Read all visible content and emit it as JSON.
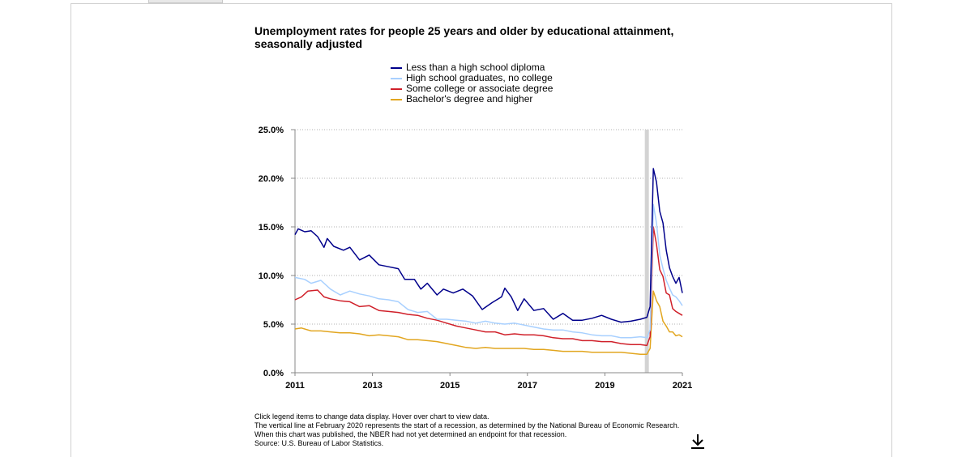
{
  "chart_data": {
    "type": "line",
    "title": "Unemployment rates for people 25 years and older by educational attainment, seasonally adjusted",
    "xlabel": "",
    "ylabel": "",
    "x_range": [
      "2011-01",
      "2021-01"
    ],
    "ylim": [
      0,
      25
    ],
    "y_ticks": [
      "0.0%",
      "5.0%",
      "10.0%",
      "15.0%",
      "20.0%",
      "25.0%"
    ],
    "x_ticks": [
      "2011",
      "2013",
      "2015",
      "2017",
      "2019",
      "2021"
    ],
    "grid": "horizontal dotted",
    "recession_start": "2020-02",
    "series": [
      {
        "name": "Less than a high school diploma",
        "color": "#00008b",
        "points": [
          [
            "2011-01",
            14.2
          ],
          [
            "2011-02",
            14.8
          ],
          [
            "2011-04",
            14.5
          ],
          [
            "2011-06",
            14.6
          ],
          [
            "2011-08",
            14.0
          ],
          [
            "2011-10",
            12.9
          ],
          [
            "2011-11",
            13.8
          ],
          [
            "2012-01",
            13.0
          ],
          [
            "2012-04",
            12.6
          ],
          [
            "2012-06",
            12.9
          ],
          [
            "2012-09",
            11.6
          ],
          [
            "2012-12",
            12.1
          ],
          [
            "2013-03",
            11.1
          ],
          [
            "2013-06",
            10.9
          ],
          [
            "2013-09",
            10.7
          ],
          [
            "2013-11",
            9.6
          ],
          [
            "2014-02",
            9.6
          ],
          [
            "2014-04",
            8.6
          ],
          [
            "2014-06",
            9.2
          ],
          [
            "2014-09",
            8.0
          ],
          [
            "2014-11",
            8.6
          ],
          [
            "2015-02",
            8.2
          ],
          [
            "2015-05",
            8.6
          ],
          [
            "2015-08",
            7.9
          ],
          [
            "2015-11",
            6.5
          ],
          [
            "2016-02",
            7.2
          ],
          [
            "2016-05",
            7.8
          ],
          [
            "2016-06",
            8.7
          ],
          [
            "2016-08",
            7.8
          ],
          [
            "2016-10",
            6.4
          ],
          [
            "2016-12",
            7.6
          ],
          [
            "2017-03",
            6.4
          ],
          [
            "2017-06",
            6.6
          ],
          [
            "2017-09",
            5.5
          ],
          [
            "2017-12",
            6.1
          ],
          [
            "2018-03",
            5.4
          ],
          [
            "2018-06",
            5.4
          ],
          [
            "2018-09",
            5.6
          ],
          [
            "2018-12",
            5.9
          ],
          [
            "2019-03",
            5.5
          ],
          [
            "2019-06",
            5.2
          ],
          [
            "2019-09",
            5.3
          ],
          [
            "2019-12",
            5.5
          ],
          [
            "2020-02",
            5.7
          ],
          [
            "2020-03",
            6.8
          ],
          [
            "2020-04",
            21.0
          ],
          [
            "2020-05",
            19.6
          ],
          [
            "2020-06",
            16.6
          ],
          [
            "2020-07",
            15.4
          ],
          [
            "2020-08",
            12.6
          ],
          [
            "2020-09",
            10.8
          ],
          [
            "2020-10",
            9.9
          ],
          [
            "2020-11",
            9.2
          ],
          [
            "2020-12",
            9.8
          ],
          [
            "2021-01",
            8.2
          ]
        ]
      },
      {
        "name": "High school graduates, no college",
        "color": "#a8d0ff",
        "points": [
          [
            "2011-01",
            9.8
          ],
          [
            "2011-04",
            9.6
          ],
          [
            "2011-06",
            9.2
          ],
          [
            "2011-09",
            9.5
          ],
          [
            "2011-12",
            8.6
          ],
          [
            "2012-03",
            8.0
          ],
          [
            "2012-06",
            8.4
          ],
          [
            "2012-09",
            8.1
          ],
          [
            "2012-12",
            7.9
          ],
          [
            "2013-03",
            7.6
          ],
          [
            "2013-06",
            7.5
          ],
          [
            "2013-09",
            7.3
          ],
          [
            "2013-12",
            6.5
          ],
          [
            "2014-03",
            6.2
          ],
          [
            "2014-06",
            6.3
          ],
          [
            "2014-09",
            5.5
          ],
          [
            "2014-12",
            5.5
          ],
          [
            "2015-03",
            5.4
          ],
          [
            "2015-06",
            5.3
          ],
          [
            "2015-09",
            5.1
          ],
          [
            "2015-12",
            5.3
          ],
          [
            "2016-03",
            5.1
          ],
          [
            "2016-06",
            5.0
          ],
          [
            "2016-09",
            5.1
          ],
          [
            "2016-12",
            4.9
          ],
          [
            "2017-03",
            4.7
          ],
          [
            "2017-06",
            4.5
          ],
          [
            "2017-09",
            4.4
          ],
          [
            "2017-12",
            4.4
          ],
          [
            "2018-03",
            4.2
          ],
          [
            "2018-06",
            4.1
          ],
          [
            "2018-09",
            3.9
          ],
          [
            "2018-12",
            3.8
          ],
          [
            "2019-03",
            3.8
          ],
          [
            "2019-06",
            3.6
          ],
          [
            "2019-09",
            3.6
          ],
          [
            "2019-12",
            3.7
          ],
          [
            "2020-02",
            3.6
          ],
          [
            "2020-03",
            4.4
          ],
          [
            "2020-04",
            17.3
          ],
          [
            "2020-05",
            15.4
          ],
          [
            "2020-06",
            12.1
          ],
          [
            "2020-07",
            10.7
          ],
          [
            "2020-08",
            9.5
          ],
          [
            "2020-09",
            8.7
          ],
          [
            "2020-10",
            8.0
          ],
          [
            "2020-11",
            7.8
          ],
          [
            "2020-12",
            7.4
          ],
          [
            "2021-01",
            6.9
          ]
        ]
      },
      {
        "name": "Some college or associate degree",
        "color": "#d0202a",
        "points": [
          [
            "2011-01",
            7.5
          ],
          [
            "2011-03",
            7.8
          ],
          [
            "2011-05",
            8.4
          ],
          [
            "2011-08",
            8.5
          ],
          [
            "2011-10",
            7.8
          ],
          [
            "2011-12",
            7.6
          ],
          [
            "2012-03",
            7.4
          ],
          [
            "2012-06",
            7.3
          ],
          [
            "2012-09",
            6.8
          ],
          [
            "2012-12",
            6.9
          ],
          [
            "2013-03",
            6.4
          ],
          [
            "2013-06",
            6.3
          ],
          [
            "2013-09",
            6.2
          ],
          [
            "2013-12",
            6.0
          ],
          [
            "2014-03",
            5.9
          ],
          [
            "2014-06",
            5.6
          ],
          [
            "2014-09",
            5.4
          ],
          [
            "2014-12",
            5.1
          ],
          [
            "2015-03",
            4.8
          ],
          [
            "2015-06",
            4.6
          ],
          [
            "2015-09",
            4.4
          ],
          [
            "2015-12",
            4.2
          ],
          [
            "2016-03",
            4.2
          ],
          [
            "2016-06",
            3.9
          ],
          [
            "2016-09",
            4.0
          ],
          [
            "2016-12",
            3.9
          ],
          [
            "2017-03",
            3.9
          ],
          [
            "2017-06",
            3.8
          ],
          [
            "2017-09",
            3.6
          ],
          [
            "2017-12",
            3.5
          ],
          [
            "2018-03",
            3.5
          ],
          [
            "2018-06",
            3.3
          ],
          [
            "2018-09",
            3.3
          ],
          [
            "2018-12",
            3.2
          ],
          [
            "2019-03",
            3.2
          ],
          [
            "2019-06",
            3.0
          ],
          [
            "2019-09",
            2.9
          ],
          [
            "2019-12",
            2.9
          ],
          [
            "2020-02",
            2.8
          ],
          [
            "2020-03",
            3.7
          ],
          [
            "2020-04",
            15.0
          ],
          [
            "2020-05",
            13.2
          ],
          [
            "2020-06",
            10.6
          ],
          [
            "2020-07",
            9.9
          ],
          [
            "2020-08",
            8.2
          ],
          [
            "2020-09",
            8.0
          ],
          [
            "2020-10",
            6.6
          ],
          [
            "2020-11",
            6.3
          ],
          [
            "2020-12",
            6.1
          ],
          [
            "2021-01",
            5.9
          ]
        ]
      },
      {
        "name": "Bachelor's degree and higher",
        "color": "#e2a620",
        "points": [
          [
            "2011-01",
            4.5
          ],
          [
            "2011-03",
            4.6
          ],
          [
            "2011-06",
            4.3
          ],
          [
            "2011-09",
            4.3
          ],
          [
            "2011-12",
            4.2
          ],
          [
            "2012-03",
            4.1
          ],
          [
            "2012-06",
            4.1
          ],
          [
            "2012-09",
            4.0
          ],
          [
            "2012-12",
            3.8
          ],
          [
            "2013-03",
            3.9
          ],
          [
            "2013-06",
            3.8
          ],
          [
            "2013-09",
            3.7
          ],
          [
            "2013-12",
            3.4
          ],
          [
            "2014-03",
            3.4
          ],
          [
            "2014-06",
            3.3
          ],
          [
            "2014-09",
            3.2
          ],
          [
            "2014-12",
            3.0
          ],
          [
            "2015-03",
            2.8
          ],
          [
            "2015-06",
            2.6
          ],
          [
            "2015-09",
            2.5
          ],
          [
            "2015-12",
            2.6
          ],
          [
            "2016-03",
            2.5
          ],
          [
            "2016-06",
            2.5
          ],
          [
            "2016-09",
            2.5
          ],
          [
            "2016-12",
            2.5
          ],
          [
            "2017-03",
            2.4
          ],
          [
            "2017-06",
            2.4
          ],
          [
            "2017-09",
            2.3
          ],
          [
            "2017-12",
            2.2
          ],
          [
            "2018-03",
            2.2
          ],
          [
            "2018-06",
            2.2
          ],
          [
            "2018-09",
            2.1
          ],
          [
            "2018-12",
            2.1
          ],
          [
            "2019-03",
            2.1
          ],
          [
            "2019-06",
            2.1
          ],
          [
            "2019-09",
            2.0
          ],
          [
            "2019-12",
            1.9
          ],
          [
            "2020-02",
            1.9
          ],
          [
            "2020-03",
            2.5
          ],
          [
            "2020-04",
            8.4
          ],
          [
            "2020-05",
            7.4
          ],
          [
            "2020-06",
            6.8
          ],
          [
            "2020-07",
            5.3
          ],
          [
            "2020-08",
            4.8
          ],
          [
            "2020-09",
            4.2
          ],
          [
            "2020-10",
            4.2
          ],
          [
            "2020-11",
            3.8
          ],
          [
            "2020-12",
            3.9
          ],
          [
            "2021-01",
            3.7
          ]
        ]
      }
    ]
  },
  "footnotes": [
    "Click legend items to change data display. Hover over chart to view data.",
    "The vertical line at February 2020 represents the start of a recession, as determined by the National Bureau of Economic Research. When this chart was published, the NBER had not yet determined an endpoint for that recession.",
    "Source: U.S. Bureau of Labor Statistics."
  ],
  "download_icon": "download-icon",
  "colors": {
    "recession_band": "#d3d3d3",
    "grid": "#b0b0b0",
    "axis": "#888888"
  }
}
